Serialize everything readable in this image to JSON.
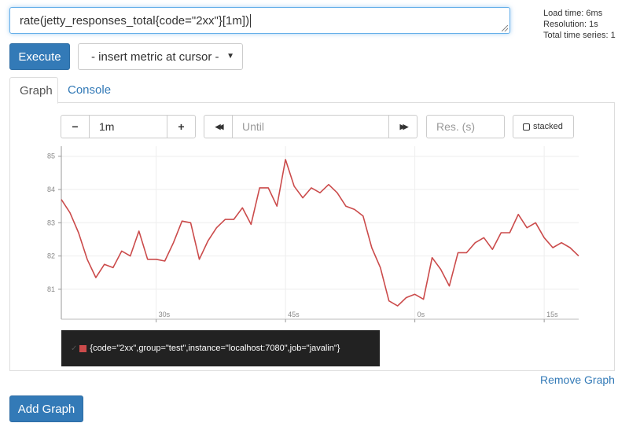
{
  "query": {
    "expression": "rate(jetty_responses_total{code=\"2xx\"}[1m])"
  },
  "stats": {
    "load_time": "Load time: 6ms",
    "resolution": "Resolution: 1s",
    "total_series": "Total time series: 1"
  },
  "toolbar": {
    "execute_label": "Execute",
    "metric_select_label": "- insert metric at cursor -"
  },
  "tabs": {
    "graph": "Graph",
    "console": "Console"
  },
  "controls": {
    "minus": "−",
    "duration": "1m",
    "plus": "+",
    "back": "◀◀",
    "until_placeholder": "Until",
    "forward": "▶▶",
    "res_placeholder": "Res. (s)",
    "stacked_label": "stacked"
  },
  "colors": {
    "series": "#cb4b4b",
    "primary": "#337ab7",
    "legend_bg": "#222222"
  },
  "chart_data": {
    "type": "line",
    "title": "",
    "xlabel": "",
    "ylabel": "",
    "ylim": [
      80.1,
      85.3
    ],
    "y_ticks": [
      81,
      82,
      83,
      84,
      85
    ],
    "x_tick_labels": [
      "30s",
      "45s",
      "0s",
      "15s"
    ],
    "x_tick_positions_s": [
      11,
      26,
      41,
      56
    ],
    "series": [
      {
        "name": "{code=\"2xx\",group=\"test\",instance=\"localhost:7080\",job=\"javalin\"}",
        "x": [
          0,
          1,
          2,
          3,
          4,
          5,
          6,
          7,
          8,
          9,
          10,
          11,
          12,
          13,
          14,
          15,
          16,
          17,
          18,
          19,
          20,
          21,
          22,
          23,
          24,
          25,
          26,
          27,
          28,
          29,
          30,
          31,
          32,
          33,
          34,
          35,
          36,
          37,
          38,
          39,
          40,
          41,
          42,
          43,
          44,
          45,
          46,
          47,
          48,
          49,
          50,
          51,
          52,
          53,
          54,
          55,
          56,
          57,
          58,
          59,
          60
        ],
        "values": [
          83.7,
          83.3,
          82.7,
          81.9,
          81.35,
          81.75,
          81.65,
          82.15,
          82.0,
          82.75,
          81.9,
          81.9,
          81.85,
          82.4,
          83.05,
          83.0,
          81.9,
          82.45,
          82.85,
          83.1,
          83.1,
          83.45,
          82.95,
          84.05,
          84.05,
          83.5,
          84.9,
          84.1,
          83.75,
          84.05,
          83.9,
          84.15,
          83.9,
          83.5,
          83.4,
          83.2,
          82.25,
          81.65,
          80.65,
          80.5,
          80.75,
          80.85,
          80.7,
          81.95,
          81.6,
          81.1,
          82.1,
          82.1,
          82.4,
          82.55,
          82.2,
          82.7,
          82.7,
          83.25,
          82.85,
          83.0,
          82.55,
          82.25,
          82.4,
          82.25,
          82.0
        ]
      }
    ]
  },
  "legend": {
    "check": "✓",
    "text": "{code=\"2xx\",group=\"test\",instance=\"localhost:7080\",job=\"javalin\"}"
  },
  "links": {
    "remove_graph": "Remove Graph",
    "add_graph": "Add Graph"
  }
}
